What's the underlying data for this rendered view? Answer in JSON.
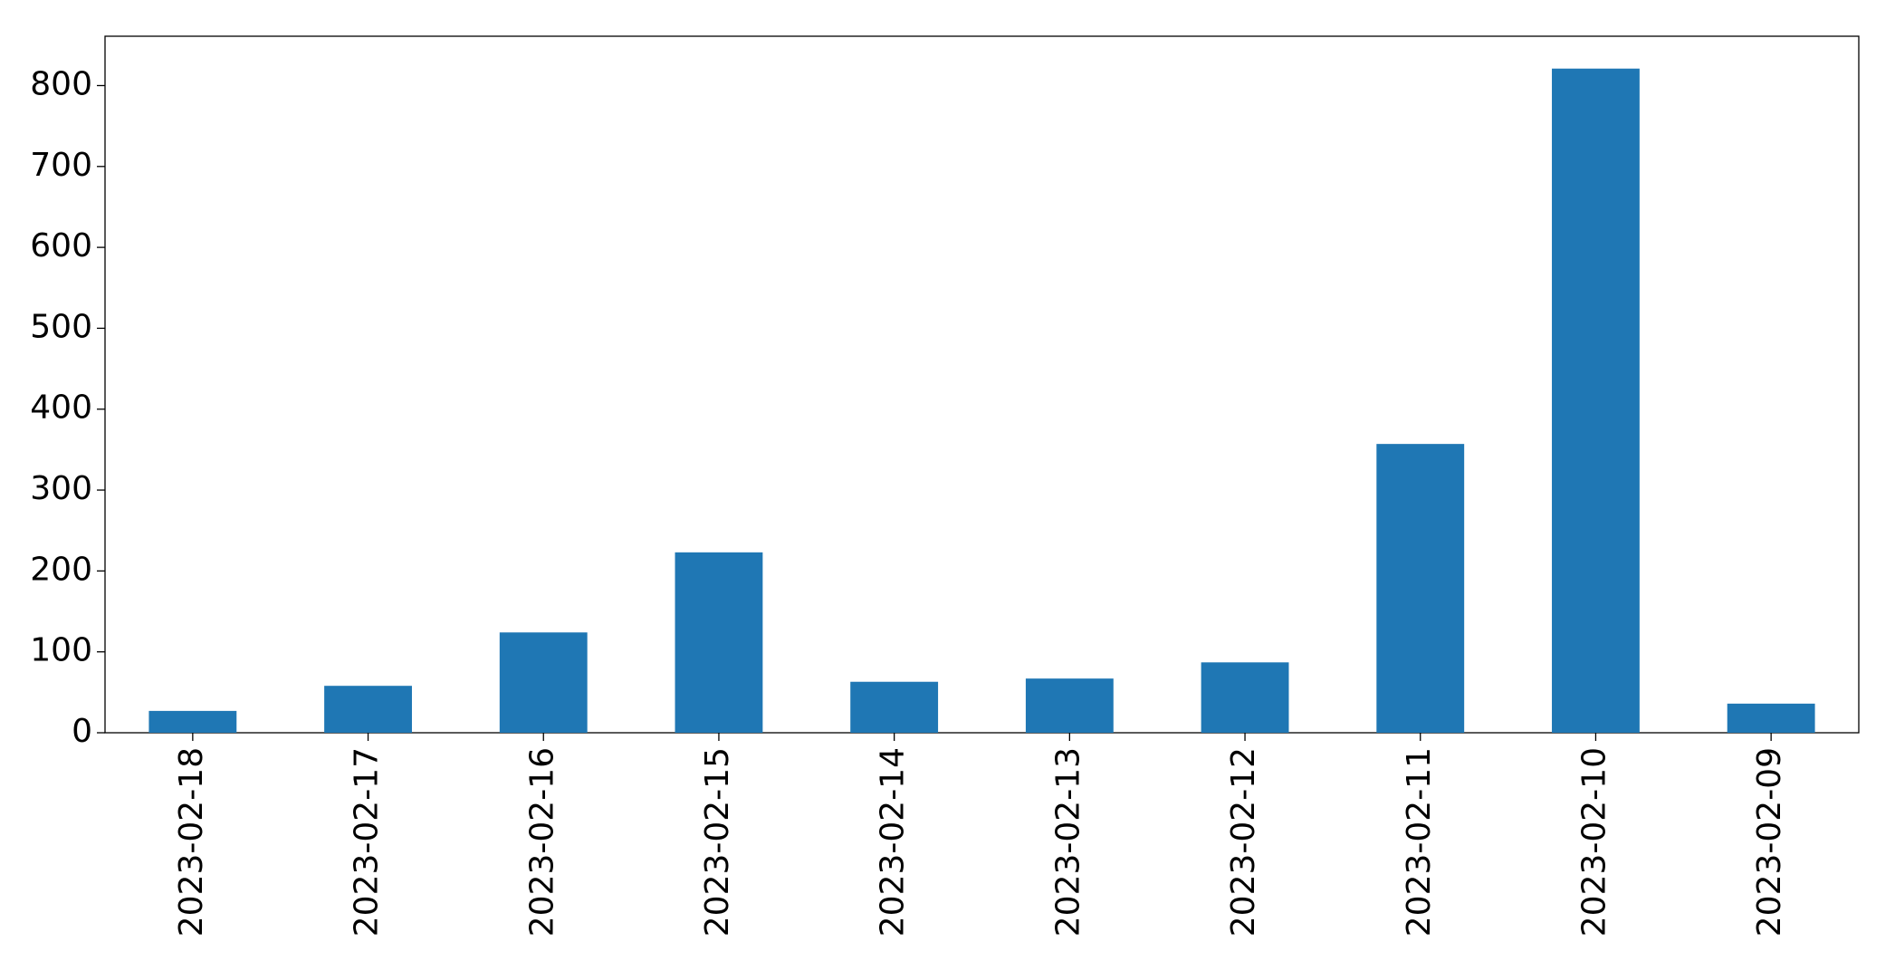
{
  "chart_data": {
    "type": "bar",
    "categories": [
      "2023-02-18",
      "2023-02-17",
      "2023-02-16",
      "2023-02-15",
      "2023-02-14",
      "2023-02-13",
      "2023-02-12",
      "2023-02-11",
      "2023-02-10",
      "2023-02-09"
    ],
    "values": [
      27,
      58,
      124,
      223,
      63,
      67,
      87,
      357,
      821,
      36
    ],
    "color": "#1f77b4",
    "ylim": [
      0,
      861
    ],
    "yticks": [
      0,
      100,
      200,
      300,
      400,
      500,
      600,
      700,
      800
    ],
    "grid": false
  }
}
